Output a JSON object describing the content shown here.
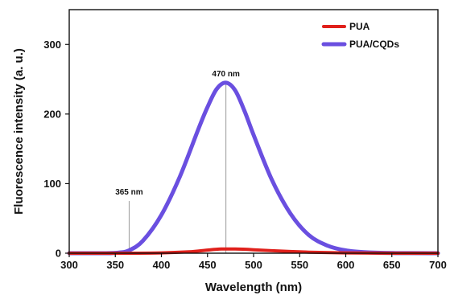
{
  "chart_data": {
    "type": "line",
    "xlabel": "Wavelength (nm)",
    "ylabel": "Fluorescence intensity (a. u.)",
    "xlim": [
      300,
      700
    ],
    "ylim": [
      0,
      350
    ],
    "x_ticks": [
      300,
      350,
      400,
      450,
      500,
      550,
      600,
      650,
      700
    ],
    "y_ticks": [
      0,
      100,
      200,
      300
    ],
    "grid": false,
    "legend_position": "top-right",
    "series": [
      {
        "name": "PUA",
        "color": "#e0201b",
        "x": [
          300,
          360,
          400,
          430,
          450,
          465,
          480,
          500,
          530,
          560,
          600,
          650,
          700
        ],
        "y": [
          0,
          0,
          0.5,
          2,
          4.5,
          6,
          6,
          5,
          3,
          1.5,
          0.5,
          0,
          0
        ]
      },
      {
        "name": "PUA/CQDs",
        "color": "#6a4fe0",
        "x": [
          300,
          340,
          355,
          365,
          380,
          400,
          420,
          440,
          450,
          460,
          470,
          480,
          490,
          500,
          520,
          540,
          560,
          580,
          600,
          620,
          650,
          700
        ],
        "y": [
          0,
          0,
          1,
          4,
          18,
          55,
          110,
          178,
          210,
          236,
          245,
          234,
          205,
          170,
          105,
          57,
          26,
          11,
          4,
          1.5,
          0.3,
          0
        ]
      }
    ],
    "annotations": [
      {
        "label": "365 nm",
        "x": 365,
        "y_from": 0,
        "y_to": 75
      },
      {
        "label": "470 nm",
        "x": 470,
        "y_from": 0,
        "y_to": 245
      }
    ]
  }
}
